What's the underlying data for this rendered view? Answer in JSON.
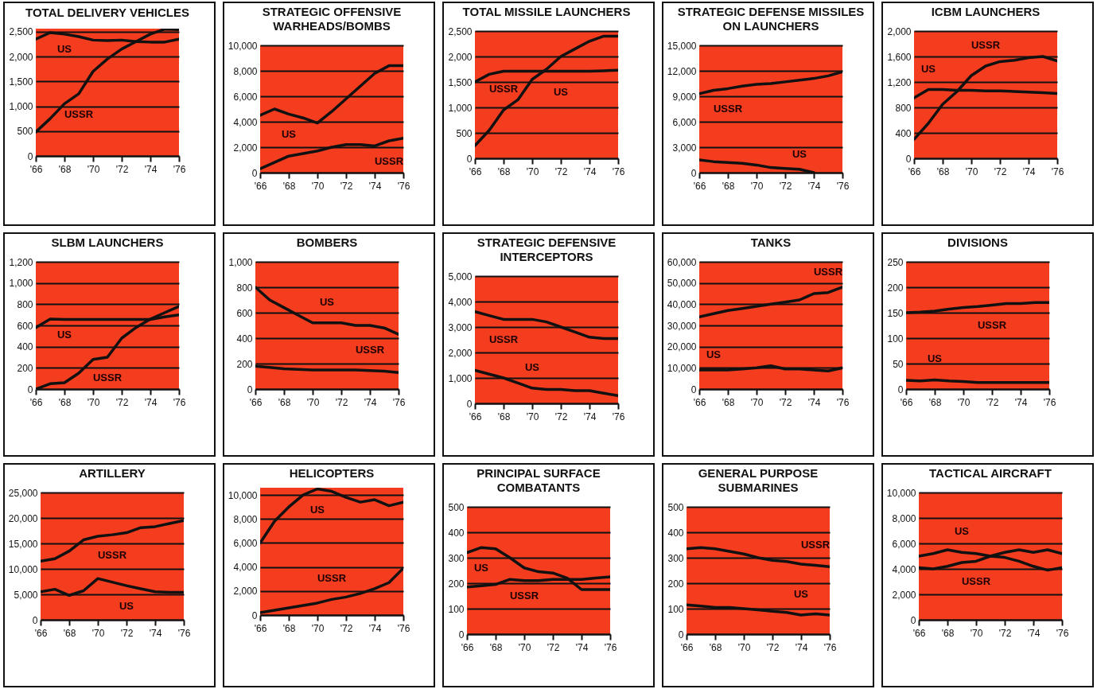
{
  "chart_data": [
    {
      "type": "line",
      "title": "TOTAL DELIVERY VEHICLES",
      "x": [
        1966,
        1967,
        1968,
        1969,
        1970,
        1971,
        1972,
        1973,
        1974,
        1975,
        1976
      ],
      "xlim": [
        1966,
        1976
      ],
      "xticks": [
        {
          "value": 1966,
          "label": "'66"
        },
        {
          "value": 1968,
          "label": "'68"
        },
        {
          "value": 1970,
          "label": "'70"
        },
        {
          "value": 1972,
          "label": "'72"
        },
        {
          "value": 1974,
          "label": "'74"
        },
        {
          "value": 1976,
          "label": "'76"
        }
      ],
      "ylim": [
        0,
        2560
      ],
      "yticks": [
        0,
        500,
        {
          "value": 1000,
          "label": "1,000"
        },
        {
          "value": 1500,
          "label": "1,500"
        },
        {
          "value": 2000,
          "label": "2,000"
        },
        {
          "value": 2500,
          "label": "2,500"
        }
      ],
      "grid": "y",
      "series": [
        {
          "name": "US",
          "color": "#111111",
          "values": [
            2350,
            2480,
            2450,
            2400,
            2330,
            2320,
            2330,
            2300,
            2290,
            2290,
            2350
          ]
        },
        {
          "name": "USSR",
          "color": "#111111",
          "values": [
            480,
            750,
            1050,
            1250,
            1700,
            1950,
            2150,
            2300,
            2450,
            2550,
            2540
          ]
        }
      ]
    },
    {
      "type": "line",
      "title": "STRATEGIC OFFENSIVE\nWARHEADS/BOMBS",
      "x": [
        1966,
        1967,
        1968,
        1969,
        1970,
        1971,
        1972,
        1973,
        1974,
        1975,
        1976
      ],
      "xlim": [
        1966,
        1976
      ],
      "xticks": [
        {
          "value": 1966,
          "label": "'66"
        },
        {
          "value": 1968,
          "label": "'68"
        },
        {
          "value": 1970,
          "label": "'70"
        },
        {
          "value": 1972,
          "label": "'72"
        },
        {
          "value": 1974,
          "label": "'74"
        },
        {
          "value": 1976,
          "label": "'76"
        }
      ],
      "ylim": [
        0,
        10000
      ],
      "yticks": [
        0,
        {
          "value": 2000,
          "label": "2,000"
        },
        {
          "value": 4000,
          "label": "4,000"
        },
        {
          "value": 6000,
          "label": "6,000"
        },
        {
          "value": 8000,
          "label": "8,000"
        },
        {
          "value": 10000,
          "label": "10,000"
        }
      ],
      "grid": "y",
      "series": [
        {
          "name": "US",
          "color": "#111111",
          "values": [
            4500,
            5000,
            4600,
            4300,
            3900,
            4800,
            5800,
            6800,
            7800,
            8400,
            8400
          ]
        },
        {
          "name": "USSR",
          "color": "#111111",
          "values": [
            300,
            800,
            1300,
            1500,
            1700,
            2000,
            2200,
            2200,
            2100,
            2500,
            2700
          ]
        }
      ]
    },
    {
      "type": "line",
      "title": "TOTAL MISSILE LAUNCHERS",
      "x": [
        1966,
        1967,
        1968,
        1969,
        1970,
        1971,
        1972,
        1973,
        1974,
        1975,
        1976
      ],
      "xlim": [
        1966,
        1976
      ],
      "xticks": [
        {
          "value": 1966,
          "label": "'66"
        },
        {
          "value": 1968,
          "label": "'68"
        },
        {
          "value": 1970,
          "label": "'70"
        },
        {
          "value": 1972,
          "label": "'72"
        },
        {
          "value": 1974,
          "label": "'74"
        },
        {
          "value": 1976,
          "label": "'76"
        }
      ],
      "ylim": [
        0,
        2500
      ],
      "yticks": [
        0,
        500,
        {
          "value": 1000,
          "label": "1,000"
        },
        {
          "value": 1500,
          "label": "1,500"
        },
        {
          "value": 2000,
          "label": "2,000"
        },
        {
          "value": 2500,
          "label": "2,500"
        }
      ],
      "grid": "y",
      "series": [
        {
          "name": "US",
          "color": "#111111",
          "values": [
            1500,
            1650,
            1710,
            1710,
            1710,
            1710,
            1710,
            1710,
            1710,
            1720,
            1730
          ]
        },
        {
          "name": "USSR",
          "color": "#111111",
          "values": [
            250,
            550,
            950,
            1150,
            1550,
            1750,
            2000,
            2150,
            2300,
            2400,
            2400
          ]
        }
      ]
    },
    {
      "type": "line",
      "title": "STRATEGIC DEFENSE MISSILES\nON LAUNCHERS",
      "x": [
        1966,
        1967,
        1968,
        1969,
        1970,
        1971,
        1972,
        1973,
        1974,
        1975,
        1976
      ],
      "xlim": [
        1966,
        1976
      ],
      "xticks": [
        {
          "value": 1966,
          "label": "'66"
        },
        {
          "value": 1968,
          "label": "'68"
        },
        {
          "value": 1970,
          "label": "'70"
        },
        {
          "value": 1972,
          "label": "'72"
        },
        {
          "value": 1974,
          "label": "'74"
        },
        {
          "value": 1976,
          "label": "'76"
        }
      ],
      "ylim": [
        0,
        15000
      ],
      "yticks": [
        0,
        {
          "value": 3000,
          "label": "3,000"
        },
        {
          "value": 6000,
          "label": "6,000"
        },
        {
          "value": 9000,
          "label": "9,000"
        },
        {
          "value": 12000,
          "label": "12,000"
        },
        {
          "value": 15000,
          "label": "15,000"
        }
      ],
      "grid": "y",
      "series": [
        {
          "name": "USSR",
          "color": "#111111",
          "values": [
            9300,
            9700,
            9900,
            10200,
            10400,
            10500,
            10700,
            10900,
            11100,
            11400,
            11900
          ]
        },
        {
          "name": "US",
          "color": "#111111",
          "values": [
            1500,
            1300,
            1200,
            1100,
            900,
            600,
            500,
            400,
            0,
            null,
            null
          ]
        }
      ]
    },
    {
      "type": "line",
      "title": "ICBM LAUNCHERS",
      "x": [
        1966,
        1967,
        1968,
        1969,
        1970,
        1971,
        1972,
        1973,
        1974,
        1975,
        1976
      ],
      "xlim": [
        1966,
        1976
      ],
      "xticks": [
        {
          "value": 1966,
          "label": "'66"
        },
        {
          "value": 1968,
          "label": "'68"
        },
        {
          "value": 1970,
          "label": "'70"
        },
        {
          "value": 1972,
          "label": "'72"
        },
        {
          "value": 1974,
          "label": "'74"
        },
        {
          "value": 1976,
          "label": "'76"
        }
      ],
      "ylim": [
        0,
        2000
      ],
      "yticks": [
        0,
        400,
        800,
        {
          "value": 1200,
          "label": "1,200"
        },
        {
          "value": 1600,
          "label": "1,600"
        },
        {
          "value": 2000,
          "label": "2,000"
        }
      ],
      "grid": "y",
      "series": [
        {
          "name": "USSR",
          "color": "#111111",
          "values": [
            300,
            550,
            850,
            1050,
            1300,
            1450,
            1520,
            1540,
            1580,
            1600,
            1530
          ]
        },
        {
          "name": "US",
          "color": "#111111",
          "values": [
            950,
            1080,
            1080,
            1070,
            1070,
            1060,
            1060,
            1050,
            1040,
            1030,
            1020
          ]
        }
      ]
    },
    {
      "type": "line",
      "title": "SLBM LAUNCHERS",
      "x": [
        1966,
        1967,
        1968,
        1969,
        1970,
        1971,
        1972,
        1973,
        1974,
        1975,
        1976
      ],
      "xlim": [
        1966,
        1976
      ],
      "xticks": [
        {
          "value": 1966,
          "label": "'66"
        },
        {
          "value": 1968,
          "label": "'68"
        },
        {
          "value": 1970,
          "label": "'70"
        },
        {
          "value": 1972,
          "label": "'72"
        },
        {
          "value": 1974,
          "label": "'74"
        },
        {
          "value": 1976,
          "label": "'76"
        }
      ],
      "ylim": [
        0,
        1200
      ],
      "yticks": [
        0,
        200,
        400,
        600,
        800,
        {
          "value": 1000,
          "label": "1,000"
        },
        {
          "value": 1200,
          "label": "1,200"
        }
      ],
      "grid": "y",
      "series": [
        {
          "name": "US",
          "color": "#111111",
          "values": [
            580,
            660,
            656,
            656,
            656,
            656,
            656,
            656,
            656,
            680,
            700
          ]
        },
        {
          "name": "USSR",
          "color": "#111111",
          "values": [
            0,
            50,
            60,
            150,
            280,
            300,
            480,
            580,
            660,
            720,
            780
          ]
        }
      ]
    },
    {
      "type": "line",
      "title": "BOMBERS",
      "x": [
        1966,
        1967,
        1968,
        1969,
        1970,
        1971,
        1972,
        1973,
        1974,
        1975,
        1976
      ],
      "xlim": [
        1966,
        1976
      ],
      "xticks": [
        {
          "value": 1966,
          "label": "'66"
        },
        {
          "value": 1968,
          "label": "'68"
        },
        {
          "value": 1970,
          "label": "'70"
        },
        {
          "value": 1972,
          "label": "'72"
        },
        {
          "value": 1974,
          "label": "'74"
        },
        {
          "value": 1976,
          "label": "'76"
        }
      ],
      "ylim": [
        0,
        1000
      ],
      "yticks": [
        0,
        200,
        400,
        600,
        800,
        {
          "value": 1000,
          "label": "1,000"
        }
      ],
      "grid": "y",
      "series": [
        {
          "name": "US",
          "color": "#111111",
          "values": [
            800,
            700,
            640,
            580,
            520,
            520,
            520,
            500,
            500,
            480,
            430
          ]
        },
        {
          "name": "USSR",
          "color": "#111111",
          "values": [
            180,
            170,
            160,
            155,
            150,
            150,
            150,
            150,
            145,
            140,
            130
          ]
        }
      ]
    },
    {
      "type": "line",
      "title": "STRATEGIC DEFENSIVE\nINTERCEPTORS",
      "x": [
        1966,
        1967,
        1968,
        1969,
        1970,
        1971,
        1972,
        1973,
        1974,
        1975,
        1976
      ],
      "xlim": [
        1966,
        1976
      ],
      "xticks": [
        {
          "value": 1966,
          "label": "'66"
        },
        {
          "value": 1968,
          "label": "'68"
        },
        {
          "value": 1970,
          "label": "'70"
        },
        {
          "value": 1972,
          "label": "'72"
        },
        {
          "value": 1974,
          "label": "'74"
        },
        {
          "value": 1976,
          "label": "'76"
        }
      ],
      "ylim": [
        0,
        5000
      ],
      "yticks": [
        0,
        {
          "value": 1000,
          "label": "1,000"
        },
        {
          "value": 2000,
          "label": "2,000"
        },
        {
          "value": 3000,
          "label": "3,000"
        },
        {
          "value": 4000,
          "label": "4,000"
        },
        {
          "value": 5000,
          "label": "5,000"
        }
      ],
      "grid": "y",
      "series": [
        {
          "name": "USSR",
          "color": "#111111",
          "values": [
            3600,
            3450,
            3300,
            3300,
            3300,
            3200,
            3000,
            2800,
            2600,
            2550,
            2550
          ]
        },
        {
          "name": "US",
          "color": "#111111",
          "values": [
            1300,
            1150,
            1000,
            800,
            600,
            550,
            550,
            500,
            500,
            400,
            300
          ]
        }
      ]
    },
    {
      "type": "line",
      "title": "TANKS",
      "x": [
        1966,
        1967,
        1968,
        1969,
        1970,
        1971,
        1972,
        1973,
        1974,
        1975,
        1976
      ],
      "xlim": [
        1966,
        1976
      ],
      "xticks": [
        {
          "value": 1966,
          "label": "'66"
        },
        {
          "value": 1968,
          "label": "'68"
        },
        {
          "value": 1970,
          "label": "'70"
        },
        {
          "value": 1972,
          "label": "'72"
        },
        {
          "value": 1974,
          "label": "'74"
        },
        {
          "value": 1976,
          "label": "'76"
        }
      ],
      "ylim": [
        0,
        60000
      ],
      "yticks": [
        0,
        {
          "value": 10000,
          "label": "10,000"
        },
        {
          "value": 20000,
          "label": "20,000"
        },
        {
          "value": 30000,
          "label": "30,000"
        },
        {
          "value": 40000,
          "label": "40,000"
        },
        {
          "value": 50000,
          "label": "50,000"
        },
        {
          "value": 60000,
          "label": "60,000"
        }
      ],
      "grid": "y",
      "series": [
        {
          "name": "USSR",
          "color": "#111111",
          "values": [
            34000,
            35500,
            37000,
            38000,
            39000,
            40000,
            41000,
            42000,
            45000,
            45500,
            48000
          ]
        },
        {
          "name": "US",
          "color": "#111111",
          "values": [
            9000,
            9000,
            9000,
            9500,
            10000,
            11000,
            9500,
            9500,
            9000,
            8500,
            10000
          ]
        }
      ]
    },
    {
      "type": "line",
      "title": "DIVISIONS",
      "x": [
        1966,
        1967,
        1968,
        1969,
        1970,
        1971,
        1972,
        1973,
        1974,
        1975,
        1976
      ],
      "xlim": [
        1966,
        1976
      ],
      "xticks": [
        {
          "value": 1966,
          "label": "'66"
        },
        {
          "value": 1968,
          "label": "'68"
        },
        {
          "value": 1970,
          "label": "'70"
        },
        {
          "value": 1972,
          "label": "'72"
        },
        {
          "value": 1974,
          "label": "'74"
        },
        {
          "value": 1976,
          "label": "'76"
        }
      ],
      "ylim": [
        0,
        250
      ],
      "yticks": [
        0,
        50,
        100,
        150,
        200,
        250
      ],
      "grid": "y",
      "series": [
        {
          "name": "USSR",
          "color": "#111111",
          "values": [
            150,
            151,
            153,
            157,
            160,
            162,
            165,
            168,
            168,
            170,
            170
          ]
        },
        {
          "name": "US",
          "color": "#111111",
          "values": [
            17,
            16,
            18,
            16,
            15,
            13,
            13,
            13,
            13,
            13,
            13
          ]
        }
      ]
    },
    {
      "type": "line",
      "title": "ARTILLERY",
      "x": [
        1966,
        1967,
        1968,
        1969,
        1970,
        1971,
        1972,
        1973,
        1974,
        1975,
        1976
      ],
      "xlim": [
        1966,
        1976
      ],
      "xticks": [
        {
          "value": 1966,
          "label": "'66"
        },
        {
          "value": 1968,
          "label": "'68"
        },
        {
          "value": 1970,
          "label": "'70"
        },
        {
          "value": 1972,
          "label": "'72"
        },
        {
          "value": 1974,
          "label": "'74"
        },
        {
          "value": 1976,
          "label": "'76"
        }
      ],
      "ylim": [
        0,
        25000
      ],
      "yticks": [
        0,
        {
          "value": 5000,
          "label": "5,000"
        },
        {
          "value": 10000,
          "label": "10,000"
        },
        {
          "value": 15000,
          "label": "15,000"
        },
        {
          "value": 20000,
          "label": "20,000"
        },
        {
          "value": 25000,
          "label": "25,000"
        }
      ],
      "grid": "y",
      "series": [
        {
          "name": "USSR",
          "color": "#111111",
          "values": [
            11500,
            12000,
            13500,
            15700,
            16400,
            16700,
            17100,
            18100,
            18300,
            18900,
            19500
          ]
        },
        {
          "name": "US",
          "color": "#111111",
          "values": [
            5500,
            6000,
            4800,
            5700,
            8100,
            7400,
            6700,
            6100,
            5500,
            5400,
            5400
          ]
        }
      ]
    },
    {
      "type": "line",
      "title": "HELICOPTERS",
      "x": [
        1966,
        1967,
        1968,
        1969,
        1970,
        1971,
        1972,
        1973,
        1974,
        1975,
        1976
      ],
      "xlim": [
        1966,
        1976
      ],
      "xticks": [
        {
          "value": 1966,
          "label": "'66"
        },
        {
          "value": 1968,
          "label": "'68"
        },
        {
          "value": 1970,
          "label": "'70"
        },
        {
          "value": 1972,
          "label": "'72"
        },
        {
          "value": 1974,
          "label": "'74"
        },
        {
          "value": 1976,
          "label": "'76"
        }
      ],
      "ylim": [
        0,
        10600
      ],
      "yticks": [
        0,
        {
          "value": 2000,
          "label": "2,000"
        },
        {
          "value": 4000,
          "label": "4,000"
        },
        {
          "value": 6000,
          "label": "6,000"
        },
        {
          "value": 8000,
          "label": "8,000"
        },
        {
          "value": 10000,
          "label": "10,000"
        }
      ],
      "grid": "y",
      "series": [
        {
          "name": "US",
          "color": "#111111",
          "values": [
            6000,
            7800,
            9000,
            10000,
            10500,
            10300,
            9800,
            9400,
            9600,
            9100,
            9400
          ]
        },
        {
          "name": "USSR",
          "color": "#111111",
          "values": [
            200,
            400,
            600,
            800,
            1000,
            1300,
            1500,
            1800,
            2200,
            2700,
            3900
          ]
        }
      ]
    },
    {
      "type": "line",
      "title": "PRINCIPAL SURFACE\nCOMBATANTS",
      "x": [
        1966,
        1967,
        1968,
        1969,
        1970,
        1971,
        1972,
        1973,
        1974,
        1975,
        1976
      ],
      "xlim": [
        1966,
        1976
      ],
      "xticks": [
        {
          "value": 1966,
          "label": "'66"
        },
        {
          "value": 1968,
          "label": "'68"
        },
        {
          "value": 1970,
          "label": "'70"
        },
        {
          "value": 1972,
          "label": "'72"
        },
        {
          "value": 1974,
          "label": "'74"
        },
        {
          "value": 1976,
          "label": "'76"
        }
      ],
      "ylim": [
        0,
        500
      ],
      "yticks": [
        0,
        100,
        200,
        300,
        400,
        500
      ],
      "grid": "y",
      "series": [
        {
          "name": "US",
          "color": "#111111",
          "values": [
            320,
            340,
            335,
            300,
            260,
            245,
            240,
            220,
            175,
            175,
            175
          ]
        },
        {
          "name": "USSR",
          "color": "#111111",
          "values": [
            185,
            190,
            195,
            215,
            210,
            210,
            215,
            215,
            215,
            220,
            225
          ]
        }
      ]
    },
    {
      "type": "line",
      "title": "GENERAL PURPOSE\nSUBMARINES",
      "x": [
        1966,
        1967,
        1968,
        1969,
        1970,
        1971,
        1972,
        1973,
        1974,
        1975,
        1976
      ],
      "xlim": [
        1966,
        1976
      ],
      "xticks": [
        {
          "value": 1966,
          "label": "'66"
        },
        {
          "value": 1968,
          "label": "'68"
        },
        {
          "value": 1970,
          "label": "'70"
        },
        {
          "value": 1972,
          "label": "'72"
        },
        {
          "value": 1974,
          "label": "'74"
        },
        {
          "value": 1976,
          "label": "'76"
        }
      ],
      "ylim": [
        0,
        500
      ],
      "yticks": [
        0,
        100,
        200,
        300,
        400,
        500
      ],
      "grid": "y",
      "series": [
        {
          "name": "USSR",
          "color": "#111111",
          "values": [
            335,
            340,
            335,
            325,
            315,
            300,
            290,
            285,
            275,
            270,
            265
          ]
        },
        {
          "name": "US",
          "color": "#111111",
          "values": [
            115,
            110,
            105,
            105,
            100,
            95,
            90,
            85,
            75,
            80,
            75
          ]
        }
      ]
    },
    {
      "type": "line",
      "title": "TACTICAL AIRCRAFT",
      "x": [
        1966,
        1967,
        1968,
        1969,
        1970,
        1971,
        1972,
        1973,
        1974,
        1975,
        1976
      ],
      "xlim": [
        1966,
        1976
      ],
      "xticks": [
        {
          "value": 1966,
          "label": "'66"
        },
        {
          "value": 1968,
          "label": "'68"
        },
        {
          "value": 1970,
          "label": "'70"
        },
        {
          "value": 1972,
          "label": "'72"
        },
        {
          "value": 1974,
          "label": "'74"
        },
        {
          "value": 1976,
          "label": "'76"
        }
      ],
      "ylim": [
        0,
        10000
      ],
      "yticks": [
        0,
        {
          "value": 2000,
          "label": "2,000"
        },
        {
          "value": 4000,
          "label": "4,000"
        },
        {
          "value": 6000,
          "label": "6,000"
        },
        {
          "value": 8000,
          "label": "8,000"
        },
        {
          "value": 10000,
          "label": "10,000"
        }
      ],
      "grid": "y",
      "series": [
        {
          "name": "US",
          "color": "#111111",
          "values": [
            5000,
            5200,
            5500,
            5300,
            5200,
            5000,
            4900,
            4600,
            4200,
            3900,
            4100
          ]
        },
        {
          "name": "USSR",
          "color": "#111111",
          "values": [
            4100,
            4000,
            4200,
            4500,
            4600,
            5000,
            5300,
            5500,
            5300,
            5500,
            5200
          ]
        }
      ]
    }
  ]
}
